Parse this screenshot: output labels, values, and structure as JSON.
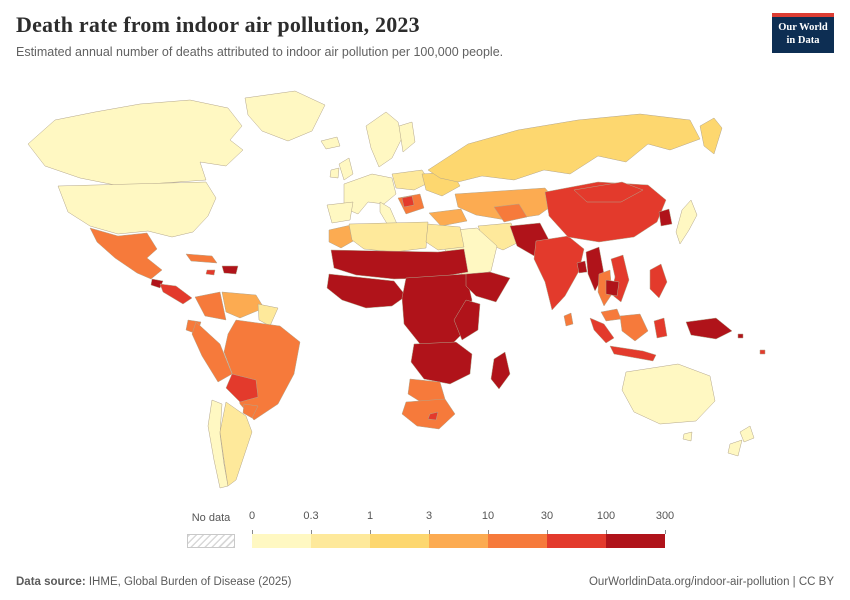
{
  "header": {
    "title": "Death rate from indoor air pollution, 2023",
    "subtitle": "Estimated annual number of deaths attributed to indoor air pollution per 100,000 people."
  },
  "logo": {
    "line1": "Our World",
    "line2": "in Data",
    "bg_color": "#0d2e53",
    "accent_color": "#dc3d33"
  },
  "legend": {
    "no_data_label": "No data",
    "tick_labels": [
      "0",
      "0.3",
      "1",
      "3",
      "10",
      "30",
      "100",
      "300"
    ],
    "bin_keys": [
      "0-0.3",
      "0.3-1",
      "1-3",
      "3-10",
      "10-30",
      "30-100",
      "100-300"
    ],
    "bin_colors": [
      "#fff8c2",
      "#fee99b",
      "#fdd76f",
      "#fcab51",
      "#f67a3b",
      "#e33a2c",
      "#b0131a"
    ]
  },
  "footer": {
    "source_label": "Data source:",
    "source_text": " IHME, Global Burden of Disease (2025)",
    "right_text": "OurWorldinData.org/indoor-air-pollution | CC BY"
  },
  "chart_data": {
    "type": "heatmap",
    "subtype": "choropleth-world-map",
    "title": "Death rate from indoor air pollution, 2023",
    "unit": "deaths per 100,000 people",
    "year": 2023,
    "scale": "log",
    "bins": [
      {
        "range": "0-0.3",
        "color": "#fff8c2"
      },
      {
        "range": "0.3-1",
        "color": "#fee99b"
      },
      {
        "range": "1-3",
        "color": "#fdd76f"
      },
      {
        "range": "3-10",
        "color": "#fcab51"
      },
      {
        "range": "10-30",
        "color": "#f67a3b"
      },
      {
        "range": "30-100",
        "color": "#e33a2c"
      },
      {
        "range": "100-300",
        "color": "#b0131a"
      }
    ],
    "region_values": {
      "greenland": "0-0.3",
      "canada": "0-0.3",
      "usa": "0-0.3",
      "mexico": "10-30",
      "guatemala": "100-300",
      "central-america": "30-100",
      "cuba": "10-30",
      "jamaica": "30-100",
      "hispaniola": "100-300",
      "ecuador": "10-30",
      "colombia": "10-30",
      "venezuela": "3-10",
      "guyanas": "0.3-1",
      "peru": "10-30",
      "brazil": "10-30",
      "bolivia": "30-100",
      "paraguay": "10-30",
      "chile": "0-0.3",
      "argentina": "0.3-1",
      "iceland": "0-0.3",
      "uk": "0-0.3",
      "ireland": "0-0.3",
      "scandinavia": "0-0.3",
      "finland": "0-0.3",
      "western-europe": "0-0.3",
      "iberia": "0-0.3",
      "italy": "0-0.3",
      "central-europe": "0.3-1",
      "ukraine": "1-3",
      "balkans": "10-30",
      "serbia-bosnia": "30-100",
      "russia": "1-3",
      "turkey": "3-10",
      "kazakhstan": "3-10",
      "uzbekistan": "10-30",
      "iran": "0.3-1",
      "saudi-arabia": "0-0.3",
      "yemen": "30-100",
      "afghanistan-pakistan": "100-300",
      "india": "30-100",
      "bangladesh": "100-300",
      "sri-lanka": "10-30",
      "china": "30-100",
      "mongolia": "30-100",
      "north-korea": "100-300",
      "japan": "0-0.3",
      "myanmar": "100-300",
      "thailand": "10-30",
      "vietnam": "30-100",
      "laos-cambodia": "100-300",
      "malaysia": "10-30",
      "sumatra": "30-100",
      "java": "30-100",
      "borneo": "10-30",
      "sulawesi": "30-100",
      "philippines": "30-100",
      "new-guinea": "100-300",
      "solomon-islands": "100-300",
      "fiji": "30-100",
      "australia": "0-0.3",
      "tasmania": "0-0.3",
      "new-zealand": "0-0.3",
      "morocco": "3-10",
      "algeria-libya": "0.3-1",
      "egypt": "0.3-1",
      "sahel": "100-300",
      "west-africa": "100-300",
      "central-africa": "100-300",
      "horn-of-africa": "100-300",
      "east-africa": "100-300",
      "angola-zambia-mozambique": "100-300",
      "namibia-botswana": "10-30",
      "south-africa": "10-30",
      "lesotho": "30-100",
      "madagascar": "100-300"
    }
  }
}
